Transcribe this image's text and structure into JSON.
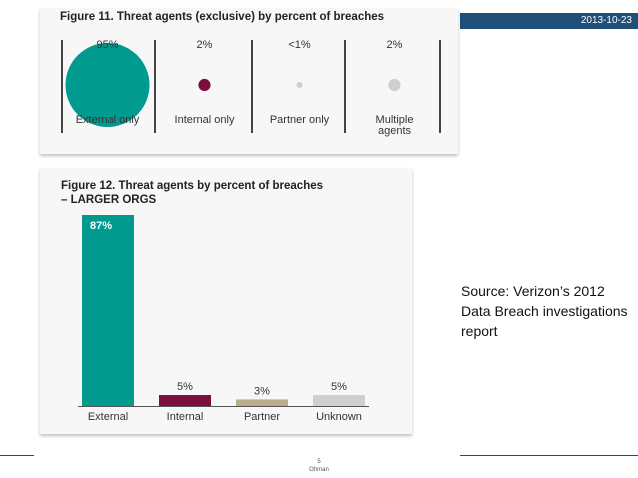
{
  "header": {
    "date": "2013-10-23"
  },
  "source_text": "Source:  Verizon’s 2012 Data Breach investigations report",
  "footer": {
    "page_number": "5",
    "author": "Ohman"
  },
  "colors": {
    "teal": "#009a8e",
    "maroon": "#7a0f3c",
    "khaki": "#b8ae8e",
    "light_gray": "#cfcfcf",
    "header_bar": "#1f4e79"
  },
  "chart_data": [
    {
      "type": "bubble",
      "title": "Figure 11. Threat agents (exclusive) by percent of breaches",
      "categories": [
        "External only",
        "Internal only",
        "Partner only",
        "Multiple agents"
      ],
      "value_labels": [
        "95%",
        "2%",
        "<1%",
        "2%"
      ],
      "values": [
        95,
        2,
        0.5,
        2
      ]
    },
    {
      "type": "bar",
      "title": "Figure 12. Threat agents  by percent of breaches",
      "subtitle": "– LARGER ORGS",
      "categories": [
        "External",
        "Internal",
        "Partner",
        "Unknown"
      ],
      "value_labels": [
        "87%",
        "5%",
        "3%",
        "5%"
      ],
      "values": [
        87,
        5,
        3,
        5
      ],
      "ylim": [
        0,
        87
      ]
    }
  ]
}
